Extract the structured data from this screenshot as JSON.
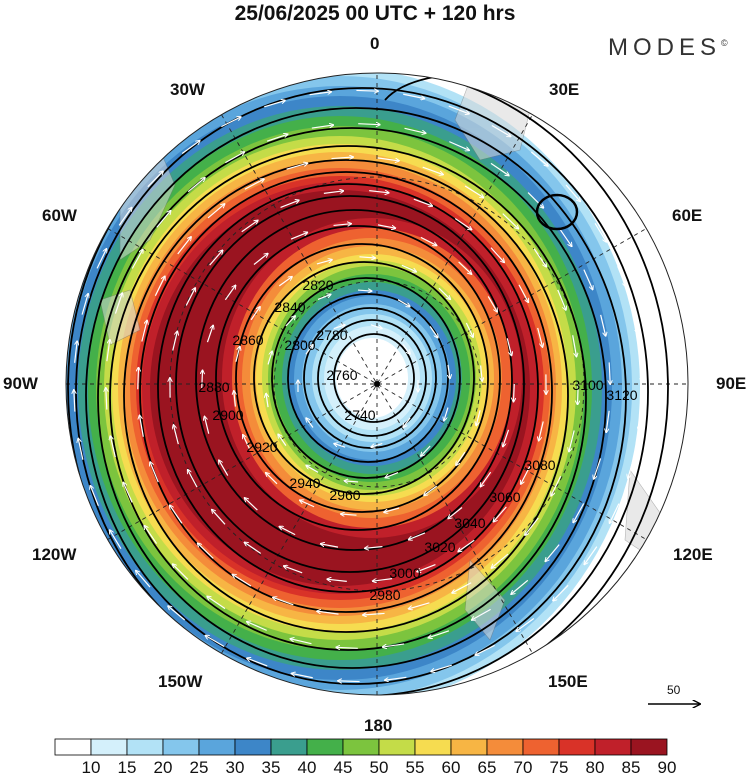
{
  "title": "25/06/2025  00 UTC  + 120 hrs",
  "brand": "MODES",
  "brand_mark": "©",
  "longitude_labels": {
    "top": "0",
    "top_right": "30E",
    "right_upper": "60E",
    "right": "90E",
    "right_lower": "120E",
    "bottom_right": "150E",
    "bottom": "180",
    "bottom_left": "150W",
    "left_lower": "120W",
    "left": "90W",
    "left_upper": "60W",
    "top_left": "30W"
  },
  "contour_labels": [
    "3120",
    "3100",
    "3080",
    "3060",
    "3040",
    "3020",
    "3000",
    "2980",
    "2960",
    "2940",
    "2920",
    "2900",
    "2880",
    "2860",
    "2840",
    "2820",
    "2800",
    "2780",
    "2760",
    "2740"
  ],
  "colorbar": {
    "ticks": [
      "10",
      "15",
      "20",
      "25",
      "30",
      "35",
      "40",
      "45",
      "50",
      "55",
      "60",
      "65",
      "70",
      "75",
      "80",
      "85",
      "90"
    ],
    "colors": [
      "#ffffff",
      "#d4f0fb",
      "#b2e2f6",
      "#84c6ec",
      "#5aa5dc",
      "#3d86c8",
      "#3a9e8e",
      "#44b04a",
      "#7cc43e",
      "#c4dc48",
      "#f6dc50",
      "#f7b544",
      "#f48c3a",
      "#ee6230",
      "#d93228",
      "#c0202a",
      "#9a1420"
    ]
  },
  "vector_reference": {
    "value": "50",
    "icon": "arrow-right-icon"
  }
}
